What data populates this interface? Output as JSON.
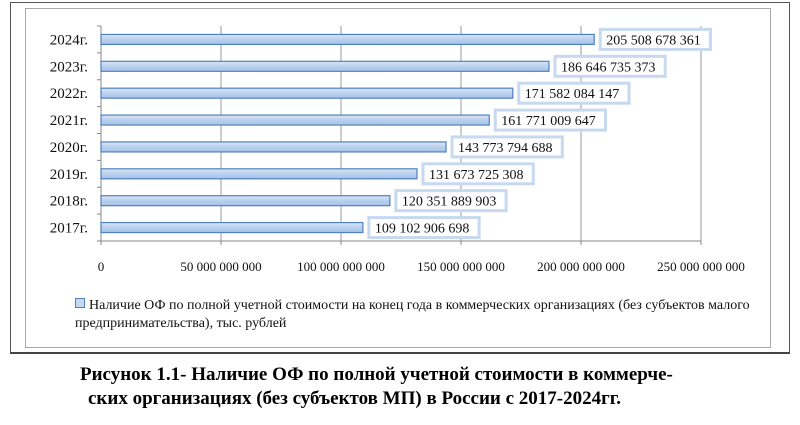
{
  "chart_data": {
    "type": "bar",
    "orientation": "horizontal",
    "categories": [
      "2024г.",
      "2023г.",
      "2022г.",
      "2021г.",
      "2020г.",
      "2019г.",
      "2018г.",
      "2017г."
    ],
    "series": [
      {
        "name": "Наличие ОФ по полной учетной стоимости на конец года в коммерческих организациях (без субъектов малого предпринимательства), тыс. рублей",
        "values": [
          205508678361,
          186646735373,
          171582084147,
          161771009647,
          143773794688,
          131673725308,
          120351889903,
          109102906698
        ],
        "data_labels": [
          "205 508 678 361",
          "186 646 735 373",
          "171 582 084 147",
          "161 771 009 647",
          "143 773 794 688",
          "131 673 725 308",
          "120 351 889 903",
          "109 102 906 698"
        ]
      }
    ],
    "xlim": [
      0,
      250000000000
    ],
    "x_ticks": [
      0,
      50000000000,
      100000000000,
      150000000000,
      200000000000,
      250000000000
    ],
    "x_tick_labels": [
      "0",
      "50 000 000 000",
      "100 000 000 000",
      "150 000 000 000",
      "200 000 000 000",
      "250 000 000 000"
    ],
    "grid": "vertical",
    "legend_position": "bottom",
    "colors": {
      "bar_fill": "#c6d9f1",
      "bar_stroke": "#4f81bd",
      "label_border": "#c6d9f1"
    }
  },
  "caption": {
    "line1": "Рисунок 1.1- Наличие ОФ по полной учетной стоимости в коммерче-",
    "line2": "ских организациях (без субъектов МП) в России с 2017-2024гг."
  }
}
